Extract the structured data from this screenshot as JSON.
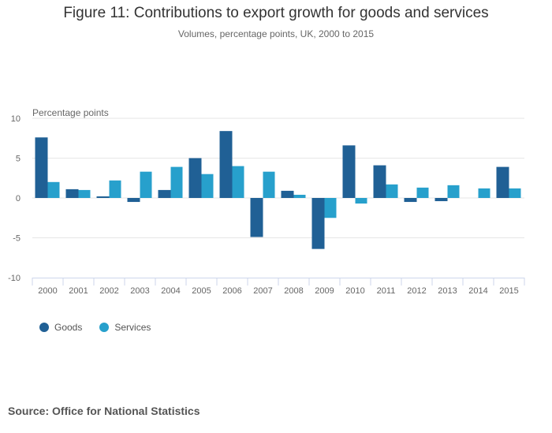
{
  "title": "Figure 11: Contributions to export growth for goods and services",
  "subtitle": "Volumes, percentage points, UK, 2000 to 2015",
  "source": "Source: Office for National Statistics",
  "colors": {
    "goods": "#206095",
    "services": "#27a0cc",
    "grid": "#e6e6e6",
    "axis": "#ccd6eb",
    "text": "#666666"
  },
  "chart_data": {
    "type": "bar",
    "title": "Figure 11: Contributions to export growth for goods and services",
    "subtitle": "Volumes, percentage points, UK, 2000 to 2015",
    "xlabel": "",
    "ylabel": "Percentage points",
    "ylim": [
      -10,
      10
    ],
    "yticks": [
      10,
      5,
      0,
      -5,
      -10
    ],
    "ytick_labels": [
      "10",
      "5",
      "0",
      "-5",
      "-10"
    ],
    "grid": true,
    "legend": "bottom-left",
    "categories": [
      "2000",
      "2001",
      "2002",
      "2003",
      "2004",
      "2005",
      "2006",
      "2007",
      "2008",
      "2009",
      "2010",
      "2011",
      "2012",
      "2013",
      "2014",
      "2015"
    ],
    "series": [
      {
        "name": "Goods",
        "color": "#206095",
        "values": [
          7.6,
          1.1,
          0.2,
          -0.5,
          1.0,
          5.0,
          8.4,
          -4.9,
          0.9,
          -6.4,
          6.6,
          4.1,
          -0.5,
          -0.4,
          0.0,
          3.9
        ]
      },
      {
        "name": "Services",
        "color": "#27a0cc",
        "values": [
          2.0,
          1.0,
          2.2,
          3.3,
          3.9,
          3.0,
          4.0,
          3.3,
          0.4,
          -2.5,
          -0.7,
          1.7,
          1.3,
          1.6,
          1.2,
          1.2
        ]
      }
    ]
  }
}
